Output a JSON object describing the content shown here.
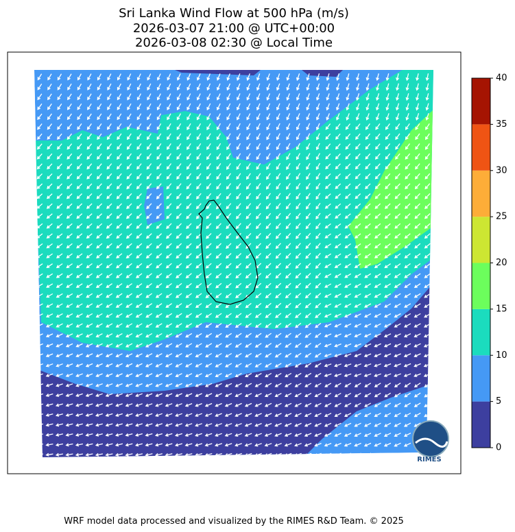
{
  "header": {
    "title_lines": [
      "Sri Lanka Wind Flow at 500 hPa (m/s)",
      "2026-03-07 21:00 @ UTC+00:00",
      "2026-03-08 02:30 @ Local Time"
    ]
  },
  "colorbar": {
    "ticks": [
      0,
      5,
      10,
      15,
      20,
      25,
      30,
      35,
      40
    ],
    "colors": [
      "#3d3f9f",
      "#4599f5",
      "#1bdcbe",
      "#6cfe5c",
      "#cde632",
      "#fdad38",
      "#ef5414",
      "#a51402"
    ]
  },
  "logo": {
    "text": "RIMES"
  },
  "footer": {
    "text": "WRF model data processed and visualized by the RIMES R&D Team. © 2025"
  }
}
